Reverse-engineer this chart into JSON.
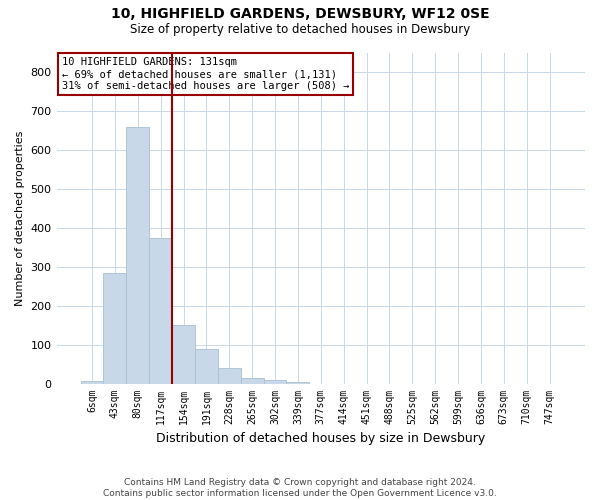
{
  "title": "10, HIGHFIELD GARDENS, DEWSBURY, WF12 0SE",
  "subtitle": "Size of property relative to detached houses in Dewsbury",
  "xlabel": "Distribution of detached houses by size in Dewsbury",
  "ylabel": "Number of detached properties",
  "bar_labels": [
    "6sqm",
    "43sqm",
    "80sqm",
    "117sqm",
    "154sqm",
    "191sqm",
    "228sqm",
    "265sqm",
    "302sqm",
    "339sqm",
    "377sqm",
    "414sqm",
    "451sqm",
    "488sqm",
    "525sqm",
    "562sqm",
    "599sqm",
    "636sqm",
    "673sqm",
    "710sqm",
    "747sqm"
  ],
  "bar_values": [
    6,
    285,
    660,
    375,
    150,
    90,
    40,
    15,
    10,
    5,
    0,
    0,
    0,
    0,
    0,
    0,
    0,
    0,
    0,
    0,
    0
  ],
  "bar_color": "#c8d8e8",
  "bar_edge_color": "#a8c0d4",
  "vline_color": "#990000",
  "vline_pos": 3.5,
  "annotation_text": "10 HIGHFIELD GARDENS: 131sqm\n← 69% of detached houses are smaller (1,131)\n31% of semi-detached houses are larger (508) →",
  "annotation_box_color": "#ffffff",
  "annotation_box_edge": "#990000",
  "ylim": [
    0,
    850
  ],
  "yticks": [
    0,
    100,
    200,
    300,
    400,
    500,
    600,
    700,
    800
  ],
  "footer": "Contains HM Land Registry data © Crown copyright and database right 2024.\nContains public sector information licensed under the Open Government Licence v3.0.",
  "bg_color": "#ffffff",
  "grid_color": "#c8d8e8"
}
